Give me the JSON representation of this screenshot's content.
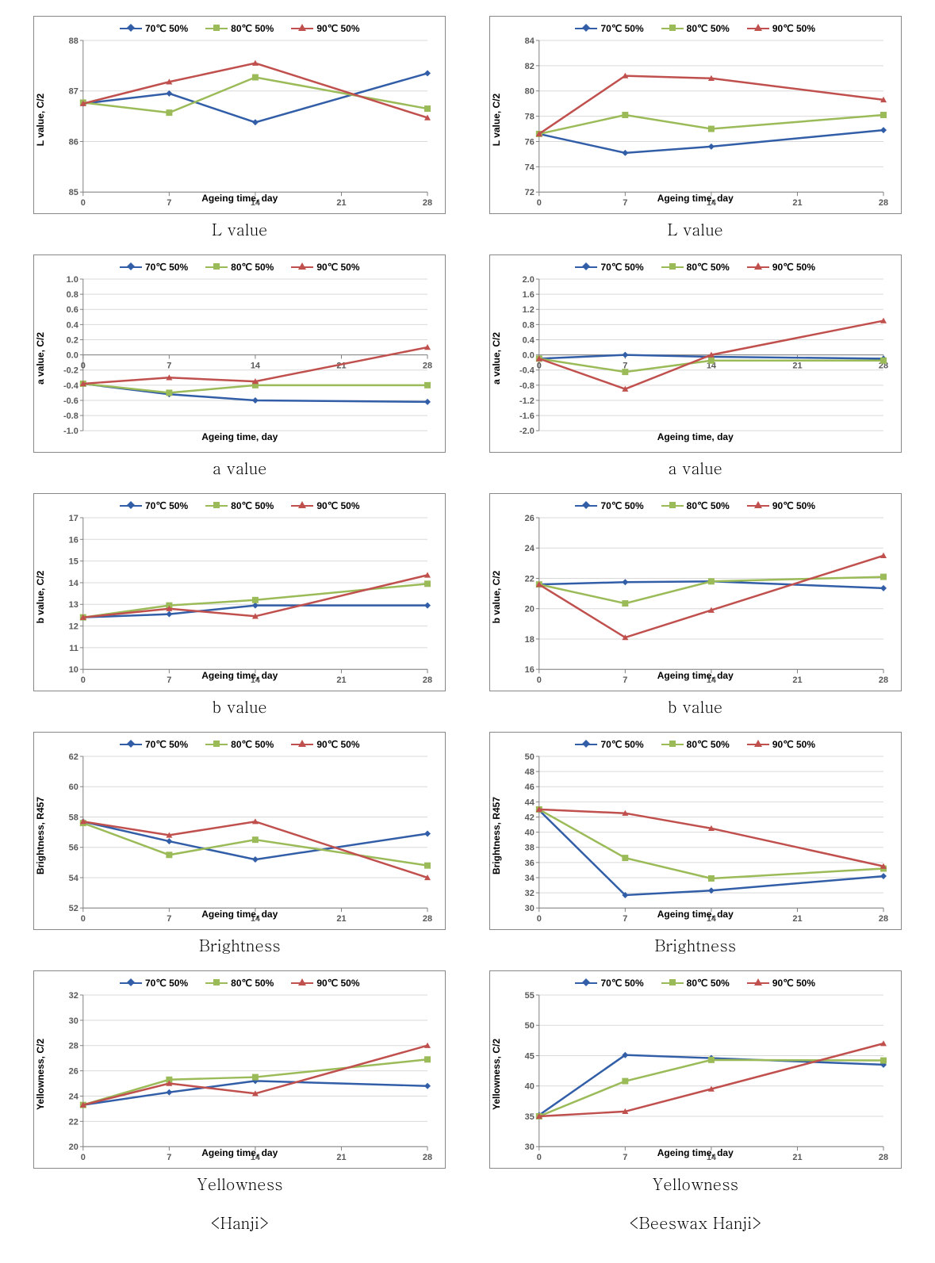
{
  "global": {
    "xlabel": "Ageing time, day",
    "x_values": [
      0,
      7,
      14,
      21,
      28
    ],
    "x_ticks": [
      0,
      7,
      14,
      21,
      28
    ],
    "series_labels": [
      "70℃ 50%",
      "80℃ 50%",
      "90℃ 50%"
    ],
    "series_colors": [
      "#325ea8",
      "#9bbb59",
      "#c0504d"
    ],
    "series_markers": [
      "diamond",
      "square",
      "triangle"
    ],
    "line_width": 2.5,
    "marker_size": 8,
    "grid_color": "#d9d9d9",
    "axis_color": "#808080",
    "tick_font_size": 11,
    "label_font_size": 12,
    "background": "#ffffff"
  },
  "columns": [
    {
      "footer": "<Hanji>"
    },
    {
      "footer": "<Beeswax Hanji>"
    }
  ],
  "rows": [
    {
      "caption": "L value",
      "ylabel": "L value, C/2",
      "left": {
        "ylim": [
          85,
          88
        ],
        "ystep": 1,
        "series": [
          [
            86.75,
            86.95,
            86.38,
            null,
            87.35
          ],
          [
            86.77,
            86.57,
            87.27,
            null,
            86.65
          ],
          [
            86.75,
            87.18,
            87.55,
            null,
            86.47
          ]
        ]
      },
      "right": {
        "ylim": [
          72,
          84
        ],
        "ystep": 2,
        "series": [
          [
            76.6,
            75.1,
            75.6,
            null,
            76.9
          ],
          [
            76.6,
            78.1,
            77.0,
            null,
            78.1
          ],
          [
            76.6,
            81.2,
            81.0,
            null,
            79.3
          ]
        ]
      }
    },
    {
      "caption": "a value",
      "ylabel": "a value, C/2",
      "left": {
        "ylim": [
          -1.0,
          1.0
        ],
        "ystep": 0.2,
        "decimals": 1,
        "zero_line": true,
        "series": [
          [
            -0.38,
            -0.52,
            -0.6,
            null,
            -0.62
          ],
          [
            -0.38,
            -0.5,
            -0.4,
            null,
            -0.4
          ],
          [
            -0.38,
            -0.3,
            -0.35,
            null,
            0.1
          ]
        ]
      },
      "right": {
        "ylim": [
          -2.0,
          2.0
        ],
        "ystep": 0.4,
        "decimals": 1,
        "zero_line": true,
        "series": [
          [
            -0.1,
            0.0,
            -0.05,
            null,
            -0.1
          ],
          [
            -0.1,
            -0.45,
            -0.15,
            null,
            -0.15
          ],
          [
            -0.1,
            -0.9,
            0.0,
            null,
            0.9
          ]
        ]
      }
    },
    {
      "caption": "b value",
      "ylabel": "b value, C/2",
      "left": {
        "ylim": [
          10,
          17
        ],
        "ystep": 1,
        "series": [
          [
            12.4,
            12.55,
            12.95,
            null,
            12.95
          ],
          [
            12.4,
            12.95,
            13.2,
            null,
            13.95
          ],
          [
            12.4,
            12.8,
            12.45,
            null,
            14.35
          ]
        ]
      },
      "right": {
        "ylim": [
          16,
          26
        ],
        "ystep": 2,
        "series": [
          [
            21.6,
            21.75,
            21.8,
            null,
            21.35
          ],
          [
            21.6,
            20.35,
            21.8,
            null,
            22.1
          ],
          [
            21.6,
            18.1,
            19.9,
            null,
            23.5
          ]
        ]
      }
    },
    {
      "caption": "Brightness",
      "ylabel": "Brightness, R457",
      "left": {
        "ylim": [
          52,
          62
        ],
        "ystep": 2,
        "series": [
          [
            57.7,
            56.4,
            55.2,
            null,
            56.9
          ],
          [
            57.6,
            55.5,
            56.5,
            null,
            54.8
          ],
          [
            57.7,
            56.8,
            57.7,
            null,
            54.0
          ]
        ]
      },
      "right": {
        "ylim": [
          30,
          50
        ],
        "ystep": 2,
        "series": [
          [
            42.9,
            31.7,
            32.3,
            null,
            34.2
          ],
          [
            43.0,
            36.6,
            33.9,
            null,
            35.2
          ],
          [
            43.0,
            42.5,
            40.5,
            null,
            35.5
          ]
        ]
      }
    },
    {
      "caption": "Yellowness",
      "ylabel": "Yellowness, C/2",
      "left": {
        "ylim": [
          20,
          32
        ],
        "ystep": 2,
        "series": [
          [
            23.3,
            24.3,
            25.2,
            null,
            24.8
          ],
          [
            23.3,
            25.3,
            25.5,
            null,
            26.9
          ],
          [
            23.3,
            25.0,
            24.2,
            null,
            28.0
          ]
        ]
      },
      "right": {
        "ylim": [
          30,
          55
        ],
        "ystep": 5,
        "series": [
          [
            35.2,
            45.1,
            44.6,
            null,
            43.5
          ],
          [
            35.0,
            40.8,
            44.3,
            null,
            44.2
          ],
          [
            35.0,
            35.8,
            39.5,
            null,
            47.0
          ]
        ]
      }
    }
  ]
}
